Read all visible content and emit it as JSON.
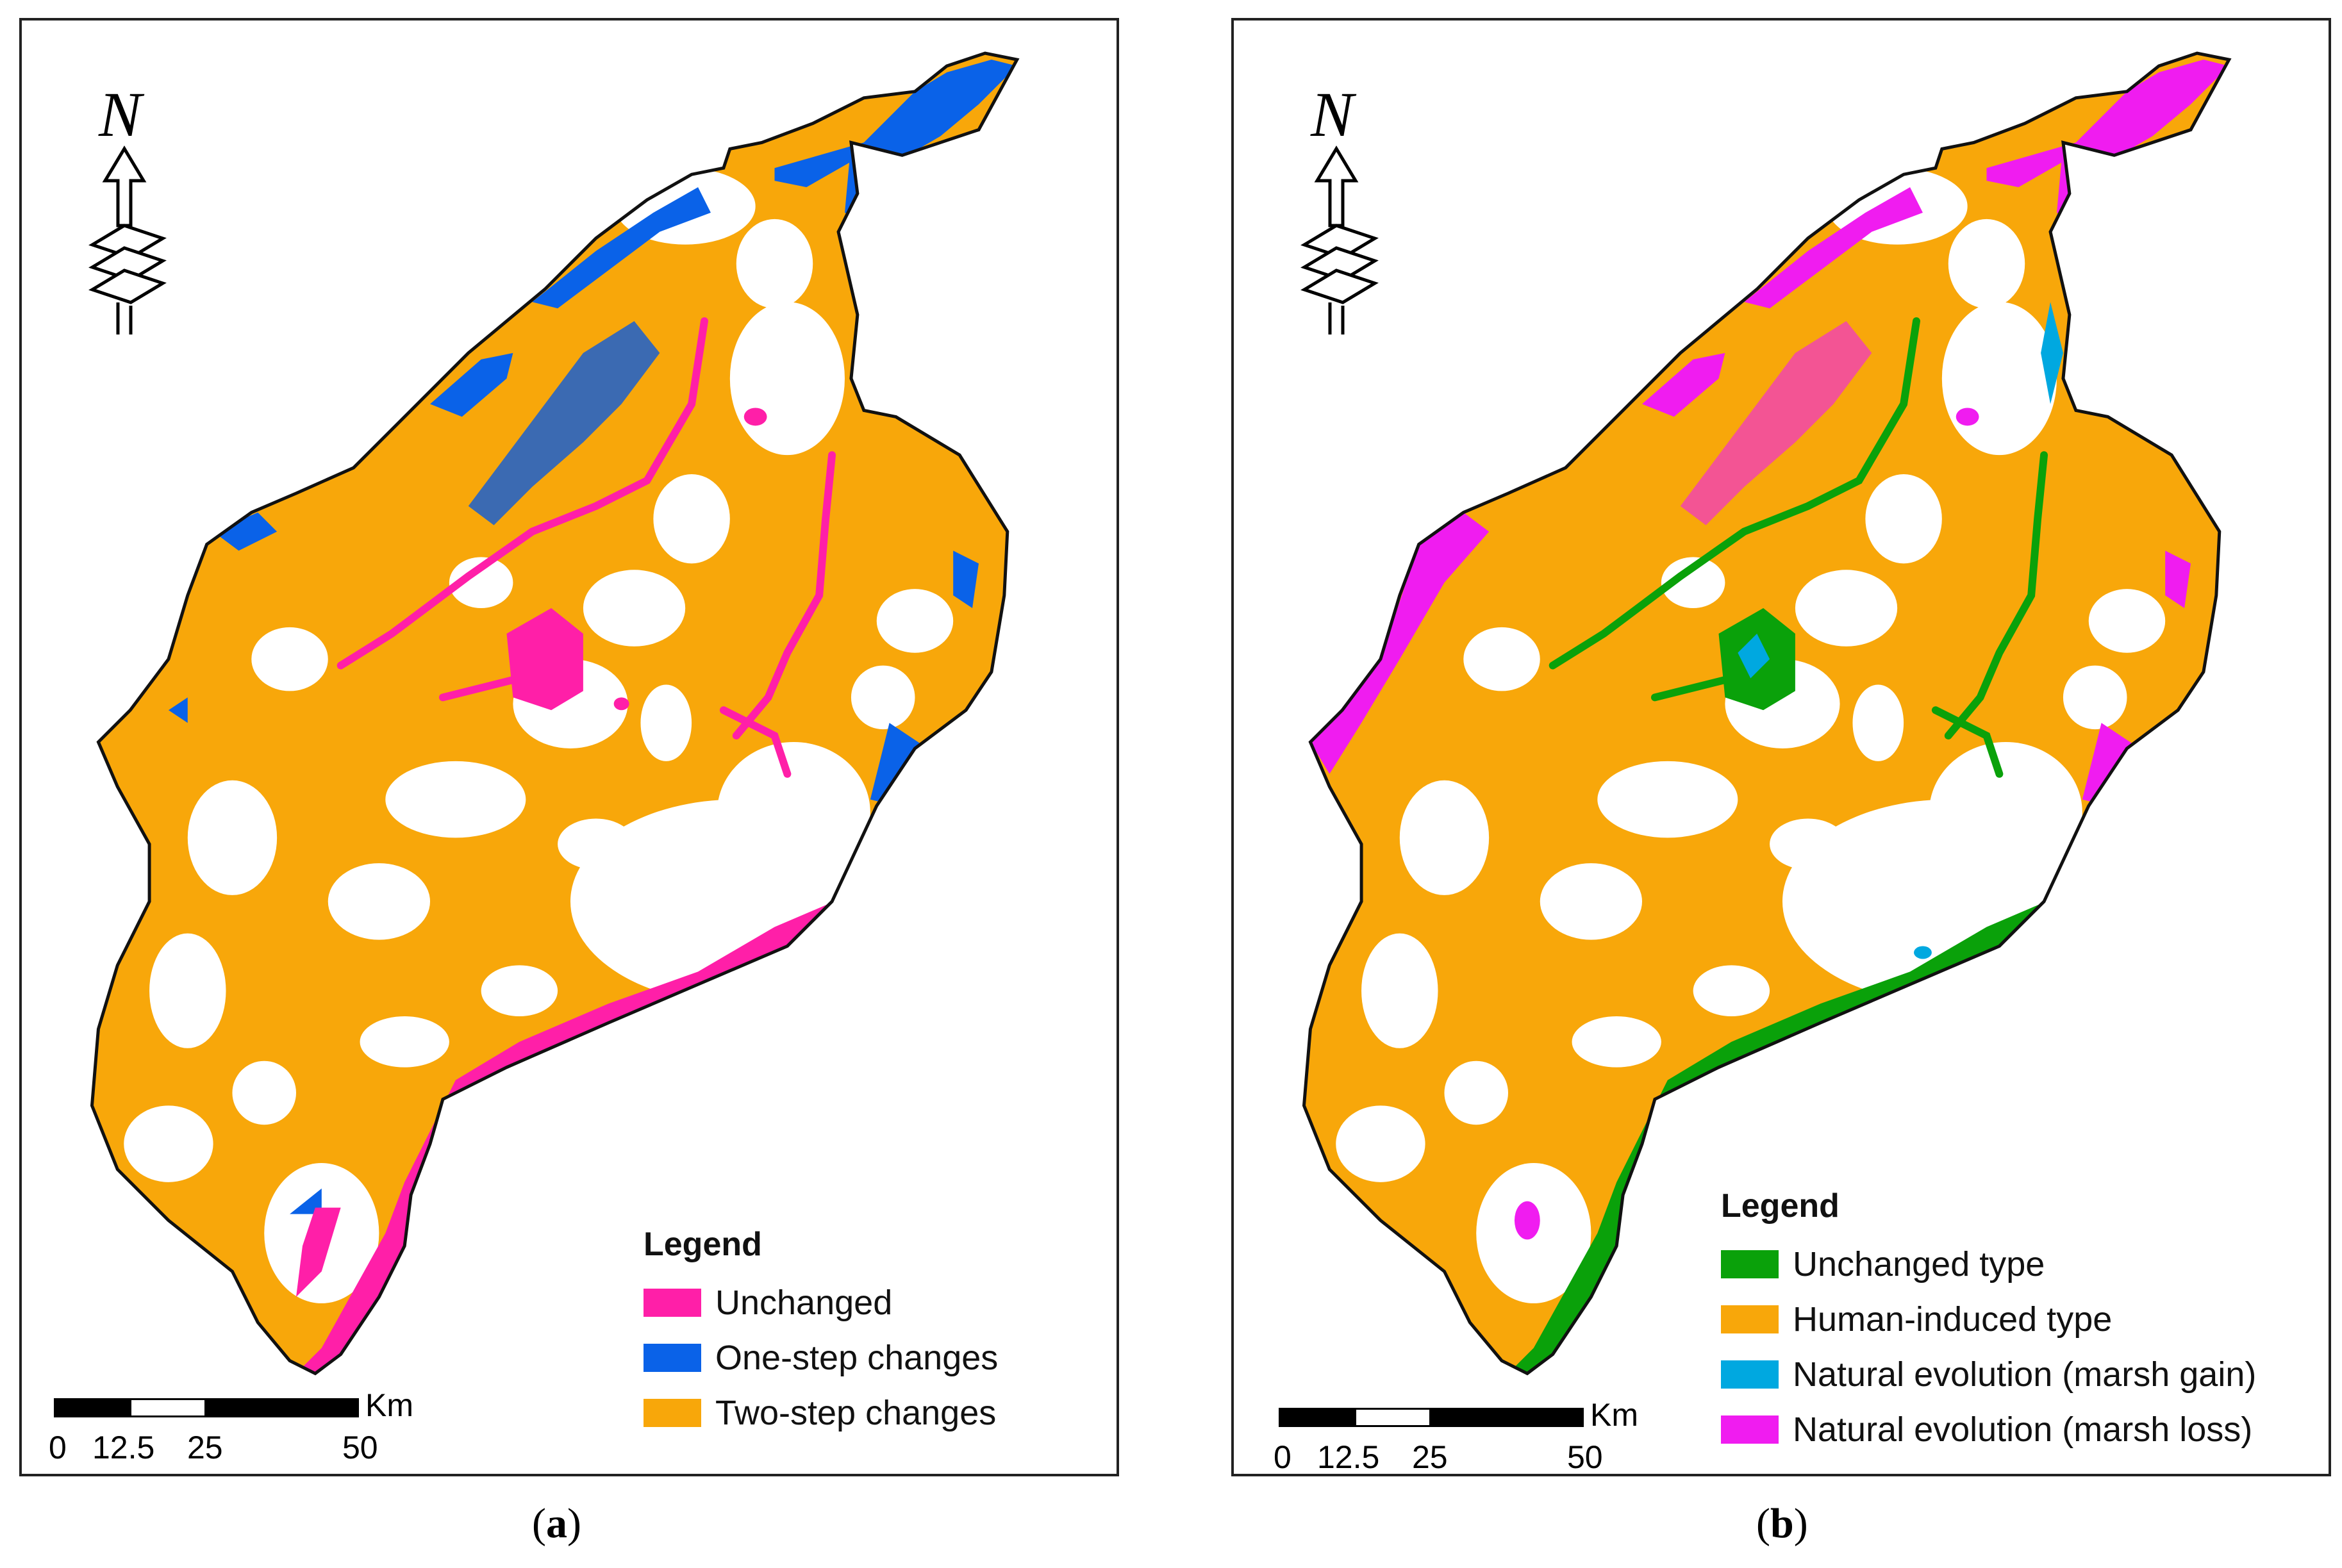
{
  "colors": {
    "pink": "#ff1fa8",
    "blue": "#0a62e8",
    "orange": "#f8a70a",
    "green": "#0aa10a",
    "cyan": "#00a8e0",
    "magenta": "#f01cf0"
  },
  "north_arrow": {
    "letter": "N",
    "icon": "north-arrow-icon"
  },
  "panel_a": {
    "caption_letter": "a",
    "legend": {
      "title": "Legend",
      "items": [
        {
          "label": "Unchanged",
          "color": "#ff1fa8"
        },
        {
          "label": "One-step changes",
          "color": "#0a62e8"
        },
        {
          "label": "Two-step changes",
          "color": "#f8a70a"
        }
      ]
    },
    "scale": {
      "unit": "Km",
      "ticks": [
        "0",
        "12.5",
        "25",
        "50"
      ]
    }
  },
  "panel_b": {
    "caption_letter": "b",
    "legend": {
      "title": "Legend",
      "items": [
        {
          "label": "Unchanged type",
          "color": "#0aa10a"
        },
        {
          "label": "Human-induced type",
          "color": "#f8a70a"
        },
        {
          "label": "Natural evolution (marsh gain)",
          "color": "#00a8e0"
        },
        {
          "label": "Natural evolution (marsh loss)",
          "color": "#f01cf0"
        }
      ]
    },
    "scale": {
      "unit": "Km",
      "ticks": [
        "0",
        "12.5",
        "25",
        "50"
      ]
    }
  }
}
